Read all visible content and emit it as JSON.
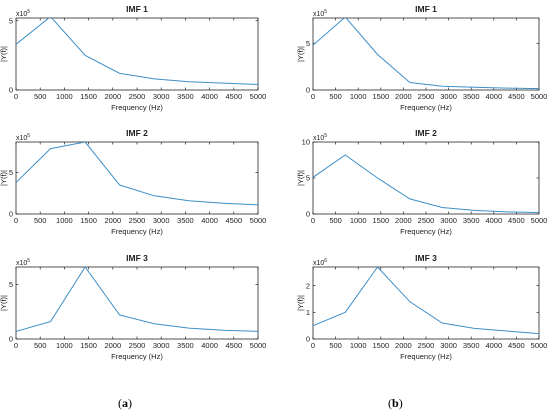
{
  "chart_data": [
    {
      "type": "line",
      "panel": "(a)",
      "title": "IMF 1",
      "xlabel": "Frequency (Hz)",
      "ylabel": "|Y(f)|",
      "exponent_base": "x10",
      "exponent": "5",
      "xlim": [
        0,
        5000
      ],
      "ylim": [
        0,
        5.2
      ],
      "xticks": [
        0,
        500,
        1000,
        1500,
        2000,
        2500,
        3000,
        3500,
        4000,
        4500,
        5000
      ],
      "yticks": [
        0,
        5
      ],
      "x": [
        0,
        714,
        1428,
        2142,
        2857,
        3571,
        4285,
        5000
      ],
      "y": [
        3.3,
        5.3,
        2.5,
        1.2,
        0.8,
        0.6,
        0.5,
        0.4
      ]
    },
    {
      "type": "line",
      "panel": "(a)",
      "title": "IMF 2",
      "xlabel": "Frequency (Hz)",
      "ylabel": "|Y(f)|",
      "exponent_base": "x10",
      "exponent": "5",
      "xlim": [
        0,
        5000
      ],
      "ylim": [
        0,
        8.7
      ],
      "xticks": [
        0,
        500,
        1000,
        1500,
        2000,
        2500,
        3000,
        3500,
        4000,
        4500,
        5000
      ],
      "yticks": [
        0,
        5
      ],
      "x": [
        0,
        714,
        1428,
        2142,
        2857,
        3571,
        4285,
        5000
      ],
      "y": [
        3.8,
        7.9,
        8.7,
        3.5,
        2.2,
        1.6,
        1.3,
        1.1
      ]
    },
    {
      "type": "line",
      "panel": "(a)",
      "title": "IMF 3",
      "xlabel": "Frequency (Hz)",
      "ylabel": "|Y(f)|",
      "exponent_base": "x10",
      "exponent": "5",
      "xlim": [
        0,
        5000
      ],
      "ylim": [
        0,
        6.6
      ],
      "xticks": [
        0,
        500,
        1000,
        1500,
        2000,
        2500,
        3000,
        3500,
        4000,
        4500,
        5000
      ],
      "yticks": [
        0,
        5
      ],
      "x": [
        0,
        714,
        1428,
        2142,
        2857,
        3571,
        4285,
        5000
      ],
      "y": [
        0.7,
        1.6,
        6.6,
        2.2,
        1.4,
        1.0,
        0.8,
        0.7
      ]
    },
    {
      "type": "line",
      "panel": "(b)",
      "title": "IMF 1",
      "xlabel": "Frequency (Hz)",
      "ylabel": "|Y(f)|",
      "exponent_base": "x10",
      "exponent": "5",
      "xlim": [
        0,
        5000
      ],
      "ylim": [
        0,
        7.7
      ],
      "xticks": [
        0,
        500,
        1000,
        1500,
        2000,
        2500,
        3000,
        3500,
        4000,
        4500,
        5000
      ],
      "yticks": [
        0,
        5
      ],
      "x": [
        0,
        714,
        1428,
        2142,
        2857,
        3571,
        4285,
        5000
      ],
      "y": [
        4.8,
        7.8,
        3.8,
        0.8,
        0.4,
        0.3,
        0.2,
        0.15
      ]
    },
    {
      "type": "line",
      "panel": "(b)",
      "title": "IMF 2",
      "xlabel": "Frequency (Hz)",
      "ylabel": "|Y(f)|",
      "exponent_base": "x10",
      "exponent": "5",
      "xlim": [
        0,
        5000
      ],
      "ylim": [
        0,
        10
      ],
      "xticks": [
        0,
        500,
        1000,
        1500,
        2000,
        2500,
        3000,
        3500,
        4000,
        4500,
        5000
      ],
      "yticks": [
        0,
        5,
        10
      ],
      "x": [
        0,
        714,
        1428,
        2142,
        2857,
        3571,
        4285,
        5000
      ],
      "y": [
        5.1,
        8.2,
        5.0,
        2.1,
        0.9,
        0.5,
        0.3,
        0.2
      ]
    },
    {
      "type": "line",
      "panel": "(b)",
      "title": "IMF 3",
      "xlabel": "Frequency (Hz)",
      "ylabel": "|Y(f)|",
      "exponent_base": "x10",
      "exponent": "6",
      "xlim": [
        0,
        5000
      ],
      "ylim": [
        0,
        2.7
      ],
      "xticks": [
        0,
        500,
        1000,
        1500,
        2000,
        2500,
        3000,
        3500,
        4000,
        4500,
        5000
      ],
      "yticks": [
        0,
        1,
        2
      ],
      "x": [
        0,
        714,
        1428,
        2142,
        2857,
        3571,
        4285,
        5000
      ],
      "y": [
        0.5,
        1.0,
        2.7,
        1.4,
        0.6,
        0.4,
        0.3,
        0.2
      ]
    }
  ],
  "panel_labels": {
    "a": "a",
    "b": "b"
  },
  "style": {
    "line_color": "#3f8fc8",
    "axis_color": "#262626"
  }
}
